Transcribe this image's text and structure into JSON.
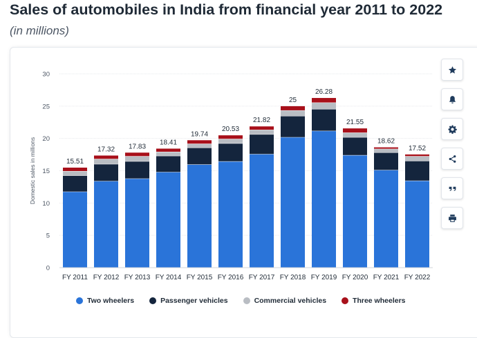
{
  "page": {
    "title": "Sales of automobiles in India from financial year 2011 to 2022",
    "subtitle": "(in millions)"
  },
  "toolbar": {
    "icons": [
      "star-icon",
      "bell-icon",
      "gear-icon",
      "share-icon",
      "quote-icon",
      "print-icon"
    ]
  },
  "chart_data": {
    "type": "bar",
    "stacked": true,
    "title": "",
    "xlabel": "",
    "ylabel": "Domestic sales in millions",
    "ylim": [
      0,
      30
    ],
    "yticks": [
      0,
      5,
      10,
      15,
      20,
      25,
      30
    ],
    "grid": true,
    "legend_position": "bottom",
    "categories": [
      "FY 2011",
      "FY 2012",
      "FY 2013",
      "FY 2014",
      "FY 2015",
      "FY 2016",
      "FY 2017",
      "FY 2018",
      "FY 2019",
      "FY 2020",
      "FY 2021",
      "FY 2022"
    ],
    "totals": [
      "15.51",
      "17.32",
      "17.83",
      "18.41",
      "19.74",
      "20.53",
      "21.82",
      "25",
      "26.28",
      "21.55",
      "18.62",
      "17.52"
    ],
    "series": [
      {
        "name": "Two wheelers",
        "color": "#2a74d9",
        "values": [
          11.77,
          13.41,
          13.8,
          14.81,
          15.98,
          16.46,
          17.59,
          20.2,
          21.18,
          17.42,
          15.12,
          13.47
        ]
      },
      {
        "name": "Passenger vehicles",
        "color": "#14253d",
        "values": [
          2.5,
          2.63,
          2.67,
          2.5,
          2.6,
          2.79,
          3.05,
          3.29,
          3.38,
          2.77,
          2.71,
          3.07
        ]
      },
      {
        "name": "Commercial vehicles",
        "color": "#b9bdc3",
        "values": [
          0.68,
          0.8,
          0.79,
          0.63,
          0.61,
          0.69,
          0.71,
          0.86,
          1.0,
          0.72,
          0.57,
          0.72
        ]
      },
      {
        "name": "Three wheelers",
        "color": "#a8101a",
        "values": [
          0.53,
          0.51,
          0.54,
          0.48,
          0.53,
          0.54,
          0.51,
          0.64,
          0.7,
          0.64,
          0.22,
          0.26
        ]
      }
    ]
  }
}
